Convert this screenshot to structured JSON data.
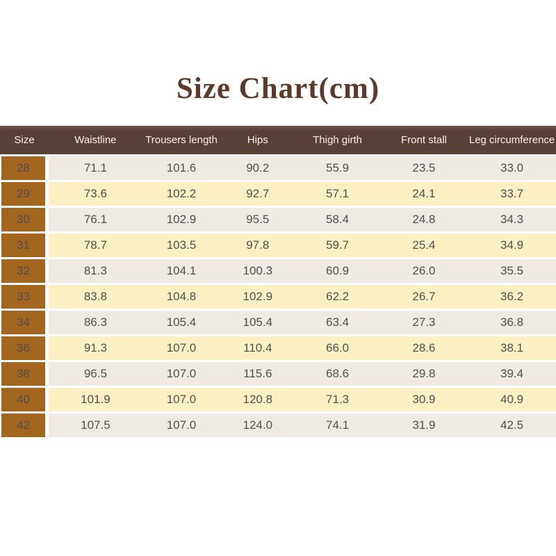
{
  "title": "Size Chart(cm)",
  "units": "cm",
  "colors": {
    "title_color": "#5b3a2b",
    "header_bg": "#594037",
    "header_text": "#f6f1ec",
    "size_col_bg": "#a2661f",
    "size_text": "#f3e8da",
    "row_light": "#f0eae4",
    "row_cream": "#faf0c3",
    "cell_text": "#4f4f4f",
    "divider": "#ffffff"
  },
  "chart_data": {
    "type": "table",
    "title": "Size Chart(cm)",
    "columns": [
      "Size",
      "Waistline",
      "Trousers length",
      "Hips",
      "Thigh girth",
      "Front stall",
      "Leg circumference"
    ],
    "rows": [
      {
        "size": "28",
        "values": [
          "71.1",
          "101.6",
          "90.2",
          "55.9",
          "23.5",
          "33.0"
        ]
      },
      {
        "size": "29",
        "values": [
          "73.6",
          "102.2",
          "92.7",
          "57.1",
          "24.1",
          "33.7"
        ]
      },
      {
        "size": "30",
        "values": [
          "76.1",
          "102.9",
          "95.5",
          "58.4",
          "24.8",
          "34.3"
        ]
      },
      {
        "size": "31",
        "values": [
          "78.7",
          "103.5",
          "97.8",
          "59.7",
          "25.4",
          "34.9"
        ]
      },
      {
        "size": "32",
        "values": [
          "81.3",
          "104.1",
          "100.3",
          "60.9",
          "26.0",
          "35.5"
        ]
      },
      {
        "size": "33",
        "values": [
          "83.8",
          "104.8",
          "102.9",
          "62.2",
          "26.7",
          "36.2"
        ]
      },
      {
        "size": "34",
        "values": [
          "86.3",
          "105.4",
          "105.4",
          "63.4",
          "27.3",
          "36.8"
        ]
      },
      {
        "size": "36",
        "values": [
          "91.3",
          "107.0",
          "110.4",
          "66.0",
          "28.6",
          "38.1"
        ]
      },
      {
        "size": "38",
        "values": [
          "96.5",
          "107.0",
          "115.6",
          "68.6",
          "29.8",
          "39.4"
        ]
      },
      {
        "size": "40",
        "values": [
          "101.9",
          "107.0",
          "120.8",
          "71.3",
          "30.9",
          "40.9"
        ]
      },
      {
        "size": "42",
        "values": [
          "107.5",
          "107.0",
          "124.0",
          "74.1",
          "31.9",
          "42.5"
        ]
      }
    ],
    "layout": {
      "row_striping": [
        "light",
        "cream"
      ],
      "size_column_highlighted": true,
      "grid": "horizontal-white-gaps"
    }
  }
}
